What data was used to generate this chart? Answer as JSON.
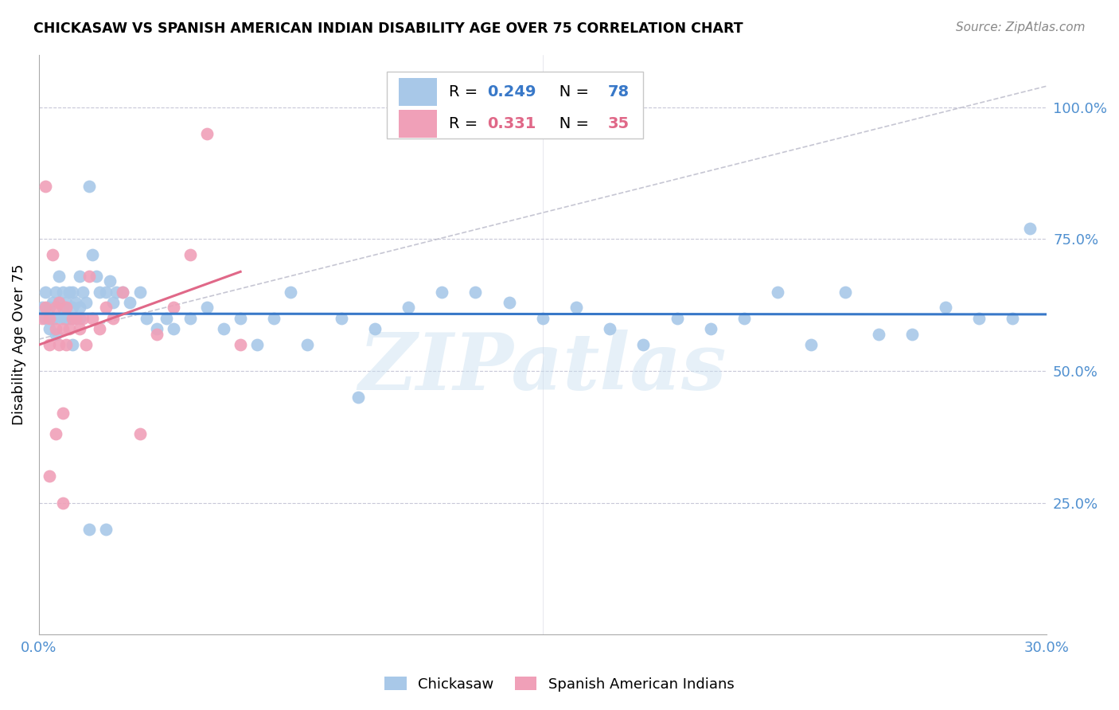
{
  "title": "CHICKASAW VS SPANISH AMERICAN INDIAN DISABILITY AGE OVER 75 CORRELATION CHART",
  "source": "Source: ZipAtlas.com",
  "ylabel": "Disability Age Over 75",
  "x_min": 0.0,
  "x_max": 0.3,
  "y_min": 0.0,
  "y_max": 1.1,
  "chickasaw_R": 0.249,
  "chickasaw_N": 78,
  "spanish_R": 0.331,
  "spanish_N": 35,
  "chickasaw_color": "#a8c8e8",
  "spanish_color": "#f0a0b8",
  "trendline_chickasaw_color": "#3878c8",
  "trendline_spanish_color": "#e06888",
  "trendline_dashed_color": "#b8b8c8",
  "watermark": "ZIPatlas",
  "right_tick_color": "#5090d0",
  "chickasaw_x": [
    0.001,
    0.002,
    0.002,
    0.003,
    0.003,
    0.004,
    0.004,
    0.005,
    0.005,
    0.006,
    0.006,
    0.007,
    0.007,
    0.007,
    0.008,
    0.008,
    0.009,
    0.009,
    0.01,
    0.01,
    0.011,
    0.011,
    0.012,
    0.012,
    0.013,
    0.014,
    0.015,
    0.016,
    0.017,
    0.018,
    0.02,
    0.021,
    0.022,
    0.023,
    0.025,
    0.027,
    0.03,
    0.032,
    0.035,
    0.038,
    0.04,
    0.045,
    0.05,
    0.055,
    0.06,
    0.065,
    0.07,
    0.075,
    0.08,
    0.09,
    0.095,
    0.1,
    0.11,
    0.12,
    0.13,
    0.14,
    0.15,
    0.16,
    0.17,
    0.18,
    0.19,
    0.2,
    0.21,
    0.22,
    0.23,
    0.24,
    0.25,
    0.26,
    0.27,
    0.28,
    0.29,
    0.295,
    0.005,
    0.008,
    0.01,
    0.012,
    0.015,
    0.02
  ],
  "chickasaw_y": [
    0.62,
    0.6,
    0.65,
    0.58,
    0.62,
    0.6,
    0.63,
    0.65,
    0.6,
    0.63,
    0.68,
    0.6,
    0.62,
    0.65,
    0.6,
    0.63,
    0.6,
    0.65,
    0.62,
    0.65,
    0.63,
    0.6,
    0.68,
    0.6,
    0.65,
    0.63,
    0.85,
    0.72,
    0.68,
    0.65,
    0.65,
    0.67,
    0.63,
    0.65,
    0.65,
    0.63,
    0.65,
    0.6,
    0.58,
    0.6,
    0.58,
    0.6,
    0.62,
    0.58,
    0.6,
    0.55,
    0.6,
    0.65,
    0.55,
    0.6,
    0.45,
    0.58,
    0.62,
    0.65,
    0.65,
    0.63,
    0.6,
    0.62,
    0.58,
    0.55,
    0.6,
    0.58,
    0.6,
    0.65,
    0.55,
    0.65,
    0.57,
    0.57,
    0.62,
    0.6,
    0.6,
    0.77,
    0.57,
    0.6,
    0.55,
    0.62,
    0.2,
    0.2
  ],
  "spanish_x": [
    0.001,
    0.002,
    0.002,
    0.003,
    0.003,
    0.004,
    0.005,
    0.005,
    0.006,
    0.006,
    0.007,
    0.007,
    0.008,
    0.008,
    0.009,
    0.01,
    0.011,
    0.012,
    0.013,
    0.014,
    0.015,
    0.016,
    0.018,
    0.02,
    0.022,
    0.025,
    0.03,
    0.035,
    0.04,
    0.045,
    0.05,
    0.06,
    0.003,
    0.005,
    0.007
  ],
  "spanish_y": [
    0.6,
    0.62,
    0.85,
    0.55,
    0.6,
    0.72,
    0.58,
    0.62,
    0.55,
    0.63,
    0.58,
    0.42,
    0.62,
    0.55,
    0.58,
    0.6,
    0.6,
    0.58,
    0.6,
    0.55,
    0.68,
    0.6,
    0.58,
    0.62,
    0.6,
    0.65,
    0.38,
    0.57,
    0.62,
    0.72,
    0.95,
    0.55,
    0.3,
    0.38,
    0.25
  ]
}
